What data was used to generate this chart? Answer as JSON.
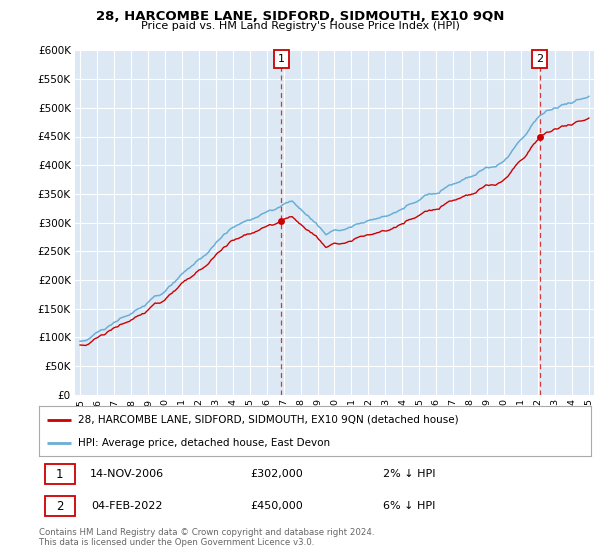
{
  "title": "28, HARCOMBE LANE, SIDFORD, SIDMOUTH, EX10 9QN",
  "subtitle": "Price paid vs. HM Land Registry's House Price Index (HPI)",
  "background_color": "#dce9f5",
  "hpi_color": "#6aaed6",
  "price_color": "#cc0000",
  "ylim": [
    0,
    600000
  ],
  "yticks": [
    0,
    50000,
    100000,
    150000,
    200000,
    250000,
    300000,
    350000,
    400000,
    450000,
    500000,
    550000,
    600000
  ],
  "xlim_left": 1994.7,
  "xlim_right": 2025.3,
  "sale1_date": 2006.87,
  "sale1_price": 302000,
  "sale1_label": "1",
  "sale2_date": 2022.09,
  "sale2_price": 450000,
  "sale2_label": "2",
  "legend_property": "28, HARCOMBE LANE, SIDFORD, SIDMOUTH, EX10 9QN (detached house)",
  "legend_hpi": "HPI: Average price, detached house, East Devon",
  "table_row1_num": "1",
  "table_row1_date": "14-NOV-2006",
  "table_row1_price": "£302,000",
  "table_row1_hpi": "2% ↓ HPI",
  "table_row2_num": "2",
  "table_row2_date": "04-FEB-2022",
  "table_row2_price": "£450,000",
  "table_row2_hpi": "6% ↓ HPI",
  "footer": "Contains HM Land Registry data © Crown copyright and database right 2024.\nThis data is licensed under the Open Government Licence v3.0."
}
